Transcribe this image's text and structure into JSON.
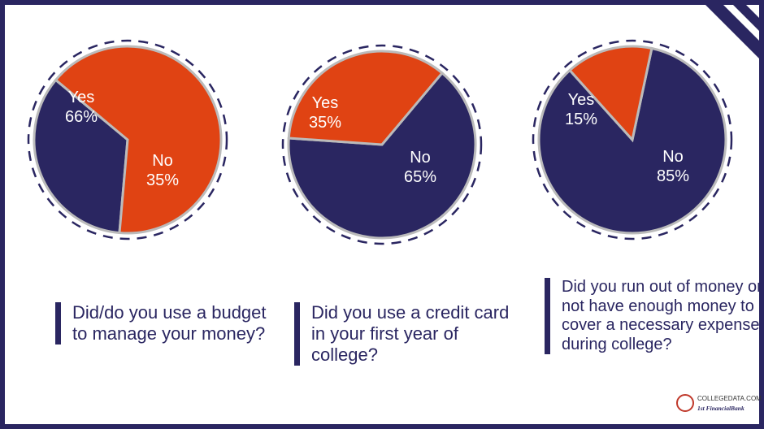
{
  "colors": {
    "frame": "#2a2661",
    "no": "#2a2661",
    "yes": "#e04313",
    "label_text": "#ffffff",
    "question_text": "#2a2661"
  },
  "chart_data": [
    {
      "type": "pie",
      "question": "Did/do you use a budget to manage your money?",
      "slices": [
        {
          "label": "Yes",
          "value": 66,
          "display": "66%",
          "color": "#e04313"
        },
        {
          "label": "No",
          "value": 35,
          "display": "35%",
          "color": "#2a2661"
        }
      ]
    },
    {
      "type": "pie",
      "question": "Did you use a credit card in your first year of college?",
      "slices": [
        {
          "label": "Yes",
          "value": 35,
          "display": "35%",
          "color": "#e04313"
        },
        {
          "label": "No",
          "value": 65,
          "display": "65%",
          "color": "#2a2661"
        }
      ]
    },
    {
      "type": "pie",
      "question": "Did you run out of money or not have enough money to cover a necessary expense during college?",
      "slices": [
        {
          "label": "Yes",
          "value": 15,
          "display": "15%",
          "color": "#e04313"
        },
        {
          "label": "No",
          "value": 85,
          "display": "85%",
          "color": "#2a2661"
        }
      ]
    }
  ],
  "questions": {
    "q1": "Did/do you use a budget to manage your money?",
    "q2": "Did you use a credit card in your first year of college?",
    "q3": "Did you run out of money or not have enough money to cover a necessary expense during college?"
  },
  "logo": {
    "line1": "COLLEGEDATA.COM",
    "line2": "1st FinancialBank",
    "icon": "college-seal-icon"
  }
}
